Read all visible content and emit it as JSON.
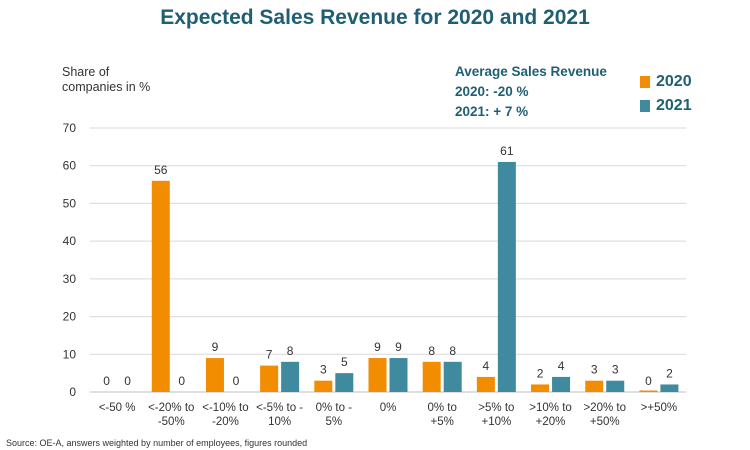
{
  "colors": {
    "s2020": "#f28c00",
    "s2021": "#3f8a9e",
    "title": "#1f5f72",
    "grid": "#d9d9d9"
  },
  "chart_data": {
    "type": "bar",
    "title": "Expected Sales Revenue for 2020 and 2021",
    "ylabel": "Share of\ncompanies in %",
    "xlabel": "",
    "ylim": [
      0,
      70
    ],
    "yticks": [
      0,
      10,
      20,
      30,
      40,
      50,
      60,
      70
    ],
    "grid": true,
    "legend_position": "top-right",
    "categories": [
      [
        "<-50 %"
      ],
      [
        "<-20% to",
        "-50%"
      ],
      [
        "<-10% to",
        "-20%"
      ],
      [
        "<-5% to -",
        "10%"
      ],
      [
        "0% to -",
        "5%"
      ],
      [
        "0%"
      ],
      [
        "0% to",
        "+5%"
      ],
      [
        ">5% to",
        "+10%"
      ],
      [
        ">10% to",
        "+20%"
      ],
      [
        ">20% to",
        "+50%"
      ],
      [
        ">+50%"
      ]
    ],
    "series": [
      {
        "name": "2020",
        "values": [
          0,
          56,
          9,
          7,
          3,
          9,
          8,
          4,
          2,
          3,
          0
        ]
      },
      {
        "name": "2021",
        "values": [
          0,
          0,
          0,
          8,
          5,
          9,
          8,
          61,
          4,
          3,
          2
        ]
      }
    ],
    "annotation": {
      "heading": "Average Sales Revenue",
      "line1": "2020: -20 %",
      "line2": "2021: + 7 %"
    }
  },
  "source": "Source: OE-A, answers weighted by number of employees, figures rounded"
}
